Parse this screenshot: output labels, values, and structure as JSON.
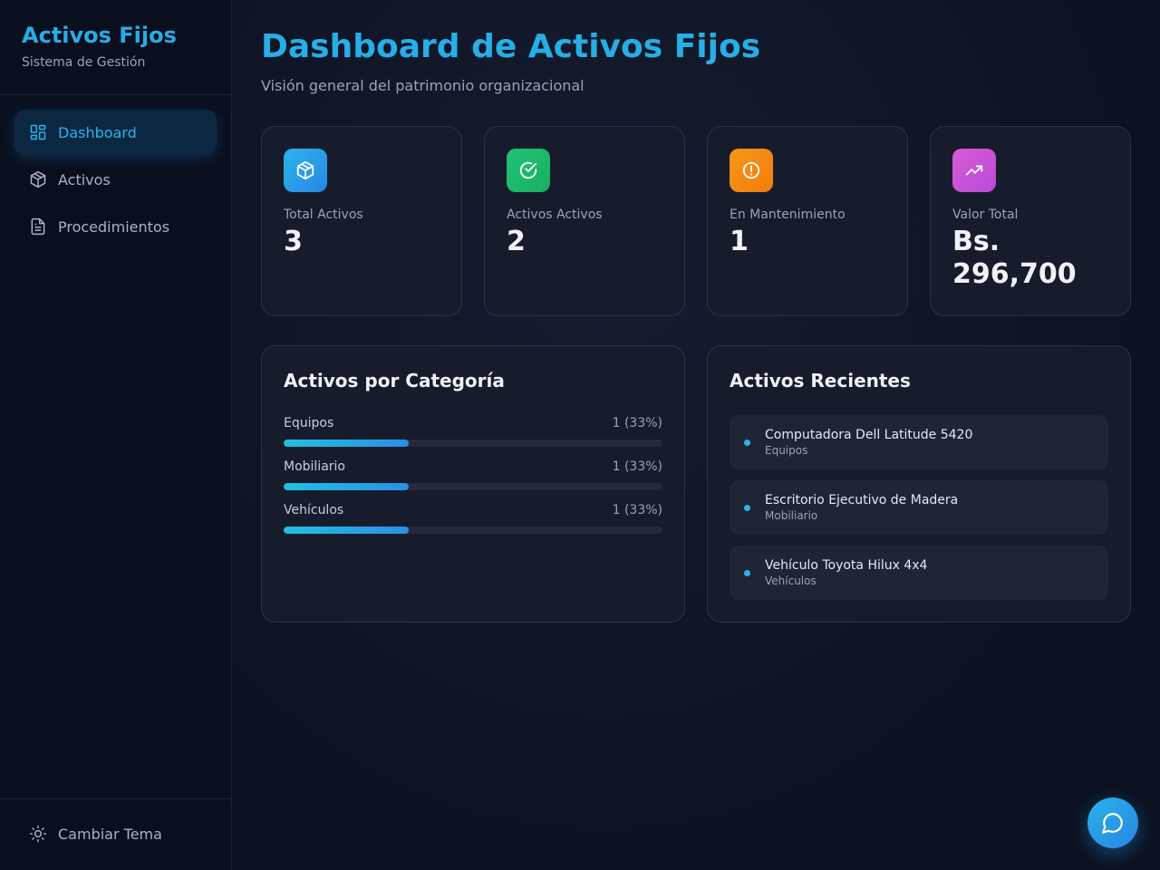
{
  "sidebar": {
    "brand_title": "Activos Fijos",
    "brand_subtitle": "Sistema de Gestión",
    "items": [
      {
        "label": "Dashboard",
        "icon": "dashboard-icon",
        "active": true
      },
      {
        "label": "Activos",
        "icon": "box-icon",
        "active": false
      },
      {
        "label": "Procedimientos",
        "icon": "document-icon",
        "active": false
      }
    ],
    "theme_label": "Cambiar Tema"
  },
  "header": {
    "title": "Dashboard de Activos Fijos",
    "subtitle": "Visión general del patrimonio organizacional"
  },
  "stats": [
    {
      "label": "Total Activos",
      "value": "3",
      "icon": "box-icon",
      "color": "#2a9fe8"
    },
    {
      "label": "Activos Activos",
      "value": "2",
      "icon": "check-circle-icon",
      "color": "#1fba6a"
    },
    {
      "label": "En Mantenimiento",
      "value": "1",
      "icon": "alert-circle-icon",
      "color": "#f58a12"
    },
    {
      "label": "Valor Total",
      "value": "Bs. 296,700",
      "icon": "trending-up-icon",
      "color": "#c856d6"
    }
  ],
  "categories_panel": {
    "title": "Activos por Categoría",
    "items": [
      {
        "name": "Equipos",
        "count": "1 (33%)",
        "fraction": 0.33
      },
      {
        "name": "Mobiliario",
        "count": "1 (33%)",
        "fraction": 0.33
      },
      {
        "name": "Vehículos",
        "count": "1 (33%)",
        "fraction": 0.33
      }
    ]
  },
  "recent_panel": {
    "title": "Activos Recientes",
    "items": [
      {
        "name": "Computadora Dell Latitude 5420",
        "category": "Equipos"
      },
      {
        "name": "Escritorio Ejecutivo de Madera",
        "category": "Mobiliario"
      },
      {
        "name": "Vehículo Toyota Hilux 4x4",
        "category": "Vehículos"
      }
    ]
  },
  "fab": {
    "icon": "chat-icon"
  }
}
